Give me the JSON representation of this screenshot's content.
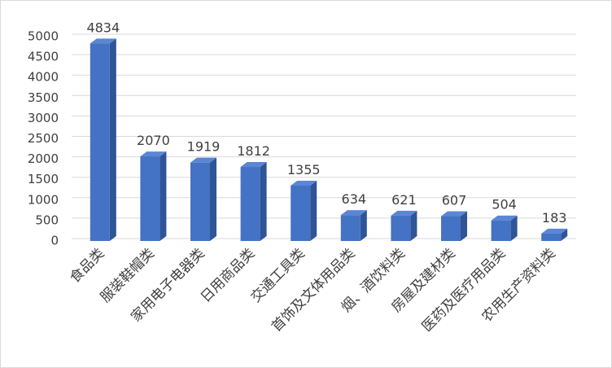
{
  "chart_data": {
    "type": "bar3d",
    "categories": [
      "食品类",
      "服装鞋帽类",
      "家用电子电器类",
      "日用商品类",
      "交通工具类",
      "首饰及文体用品类",
      "烟、酒饮料类",
      "房屋及建材类",
      "医药及医疗用品类",
      "农用生产资料类"
    ],
    "values": [
      4834,
      2070,
      1919,
      1812,
      1355,
      634,
      621,
      607,
      504,
      183
    ],
    "color": "#4472c4",
    "ylim": [
      0,
      5000
    ],
    "yticks": [
      0,
      500,
      1000,
      1500,
      2000,
      2500,
      3000,
      3500,
      4000,
      4500,
      5000
    ],
    "grid": true
  }
}
